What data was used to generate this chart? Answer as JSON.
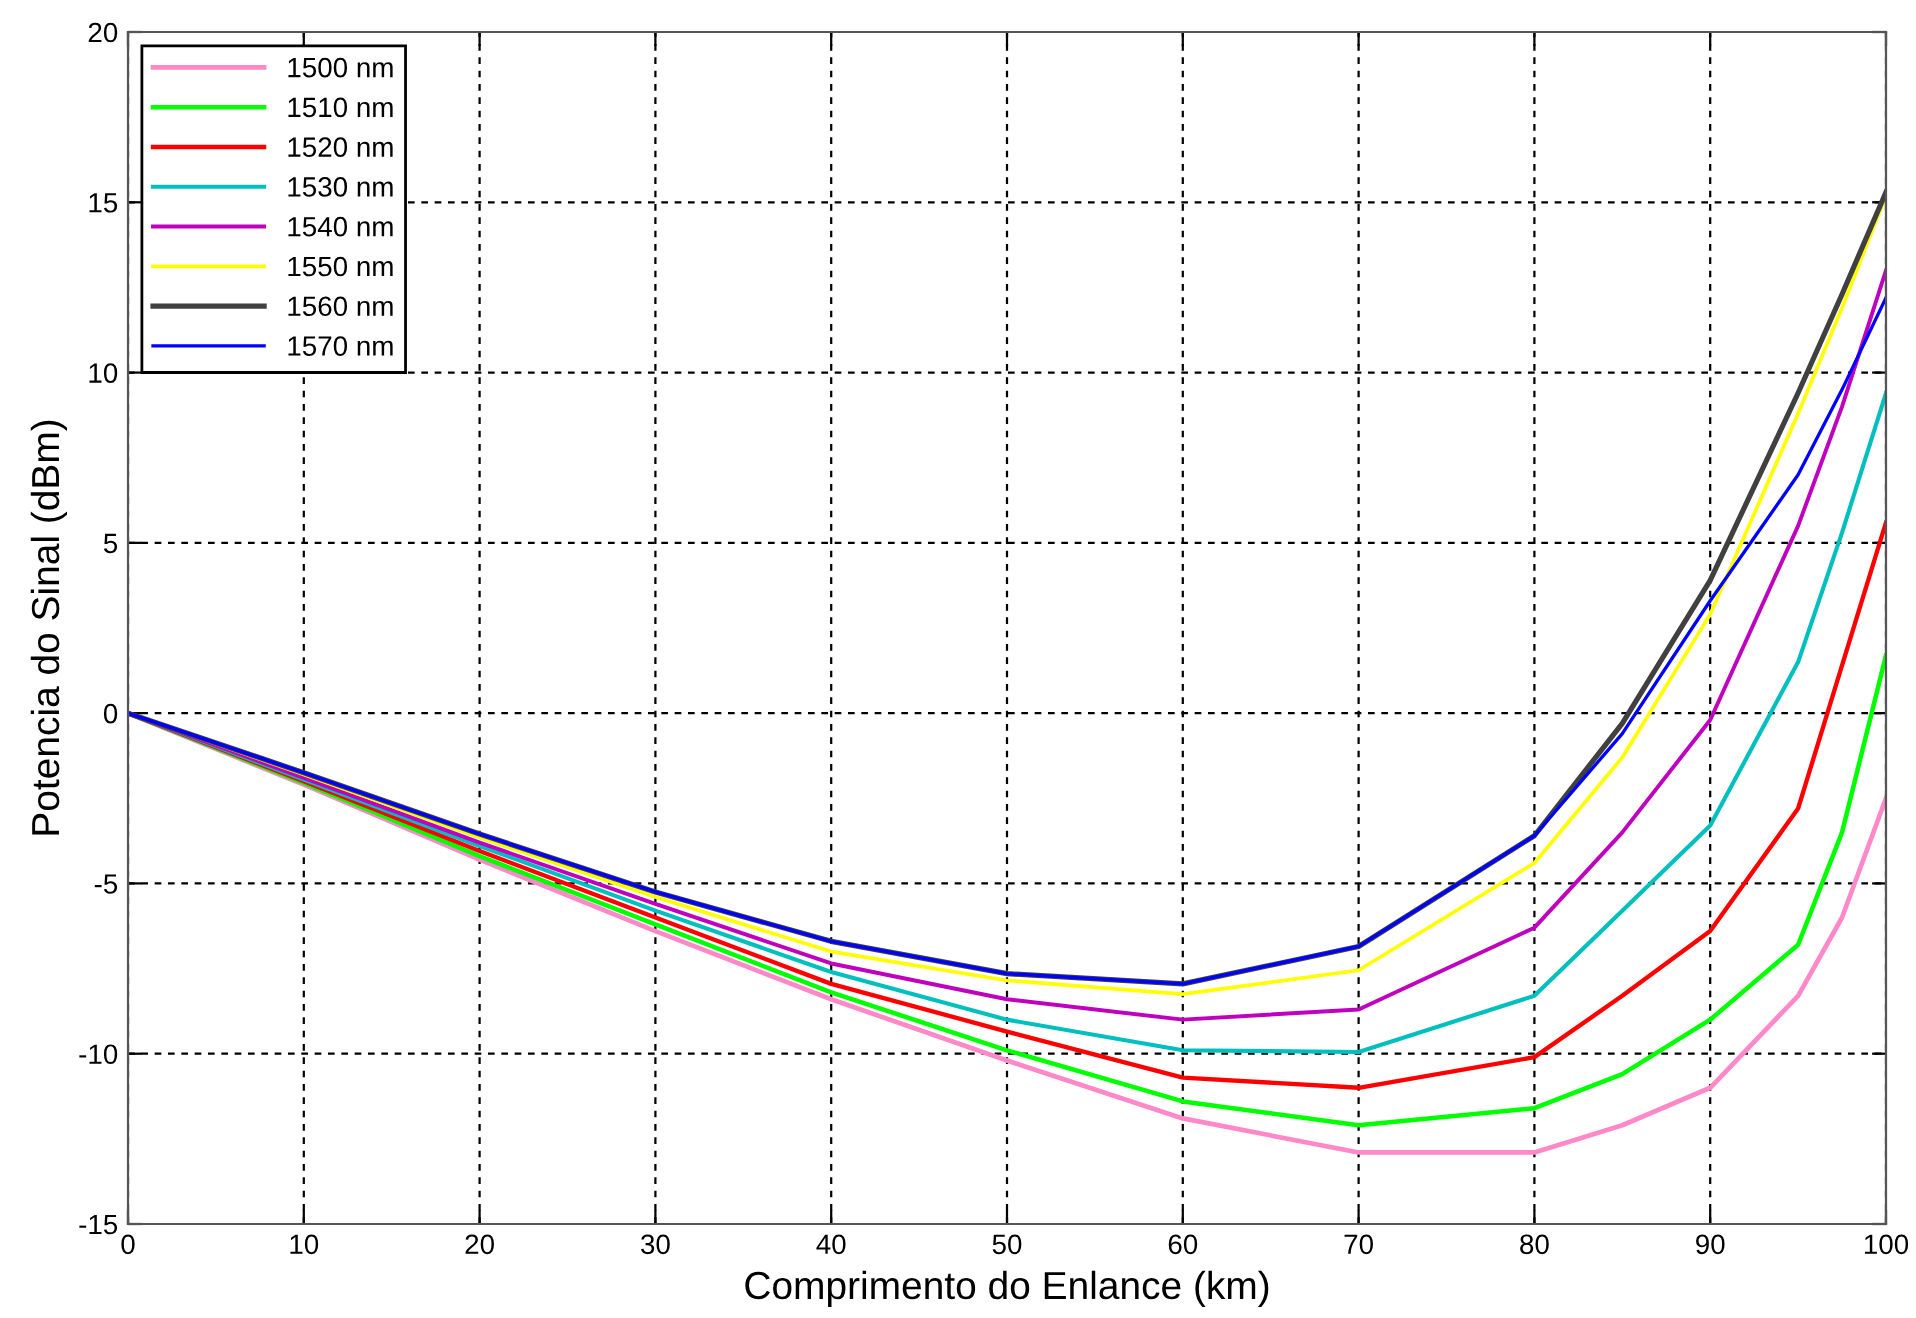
{
  "chart_data": {
    "type": "line",
    "xlabel": "Comprimento do Enlance (km)",
    "ylabel": "Potencia do Sinal (dBm)",
    "x": [
      0,
      10,
      20,
      30,
      40,
      50,
      60,
      70,
      80,
      85,
      90,
      95,
      97.5,
      100
    ],
    "xlim": [
      0,
      100
    ],
    "xticks": [
      0,
      10,
      20,
      30,
      40,
      50,
      60,
      70,
      80,
      90,
      100
    ],
    "ylim": [
      -15,
      20
    ],
    "yticks": [
      -15,
      -10,
      -5,
      0,
      5,
      10,
      15,
      20
    ],
    "grid": true,
    "legend": "top left",
    "line_style": "solid",
    "marker": "none",
    "series": [
      {
        "name": "1500 nm",
        "color": "#ff88c8",
        "values": [
          0,
          -2.1,
          -4.3,
          -6.4,
          -8.4,
          -10.2,
          -11.9,
          -12.9,
          -12.9,
          -12.1,
          -11.0,
          -8.3,
          -6.0,
          -2.5
        ]
      },
      {
        "name": "1510 nm",
        "color": "#00ff00",
        "values": [
          0,
          -2.05,
          -4.2,
          -6.2,
          -8.2,
          -9.9,
          -11.4,
          -12.1,
          -11.6,
          -10.6,
          -9.0,
          -6.8,
          -3.5,
          1.7
        ]
      },
      {
        "name": "1520 nm",
        "color": "#ff0000",
        "values": [
          0,
          -2.0,
          -4.05,
          -6.0,
          -7.95,
          -9.35,
          -10.7,
          -11.0,
          -10.1,
          -8.3,
          -6.4,
          -2.8,
          1.4,
          5.6
        ]
      },
      {
        "name": "1530 nm",
        "color": "#00bfbf",
        "values": [
          0,
          -1.95,
          -3.9,
          -5.8,
          -7.6,
          -9.0,
          -9.9,
          -9.95,
          -8.3,
          -5.8,
          -3.3,
          1.5,
          5.3,
          9.4
        ]
      },
      {
        "name": "1540 nm",
        "color": "#bf00bf",
        "values": [
          0,
          -1.9,
          -3.8,
          -5.6,
          -7.35,
          -8.4,
          -9.0,
          -8.7,
          -6.3,
          -3.5,
          -0.2,
          5.5,
          9.0,
          13.0
        ]
      },
      {
        "name": "1550 nm",
        "color": "#ffff00",
        "values": [
          0,
          -1.8,
          -3.65,
          -5.4,
          -7.0,
          -7.85,
          -8.25,
          -7.55,
          -4.4,
          -1.3,
          2.9,
          8.8,
          11.9,
          15.2
        ]
      },
      {
        "name": "1560 nm",
        "color": "#404040",
        "values": [
          0,
          -1.75,
          -3.55,
          -5.25,
          -6.7,
          -7.65,
          -7.95,
          -6.85,
          -3.6,
          -0.3,
          3.9,
          9.4,
          12.3,
          15.3
        ]
      },
      {
        "name": "1570 nm",
        "color": "#0000ff",
        "values": [
          0,
          -1.75,
          -3.55,
          -5.25,
          -6.7,
          -7.65,
          -7.95,
          -6.85,
          -3.6,
          -0.6,
          3.3,
          7.0,
          9.5,
          12.2
        ]
      }
    ]
  }
}
